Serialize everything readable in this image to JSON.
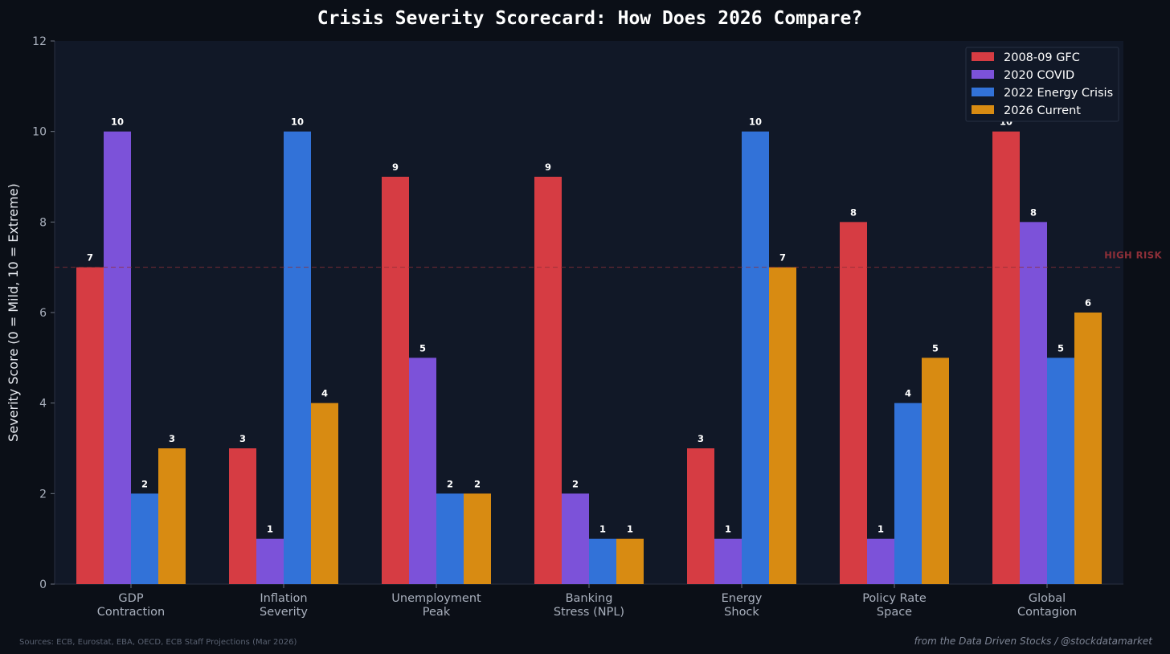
{
  "chart_data": {
    "type": "bar",
    "title": "Crisis Severity Scorecard: How Does 2026 Compare?",
    "ylabel": "Severity Score (0 = Mild, 10 = Extreme)",
    "xlabel": "",
    "ylim": [
      0,
      12
    ],
    "yticks": [
      "0",
      "2",
      "4",
      "6",
      "8",
      "10",
      "12"
    ],
    "categories": [
      [
        "GDP",
        "Contraction"
      ],
      [
        "Inflation",
        "Severity"
      ],
      [
        "Unemployment",
        "Peak"
      ],
      [
        "Banking",
        "Stress (NPL)"
      ],
      [
        "Energy",
        "Shock"
      ],
      [
        "Policy Rate",
        "Space"
      ],
      [
        "Global",
        "Contagion"
      ]
    ],
    "series": [
      {
        "name": "2008-09 GFC",
        "color": "#d63c43",
        "values": [
          7,
          3,
          9,
          9,
          3,
          8,
          10
        ]
      },
      {
        "name": "2020 COVID",
        "color": "#7c52d9",
        "values": [
          10,
          1,
          5,
          2,
          1,
          1,
          8
        ]
      },
      {
        "name": "2022 Energy Crisis",
        "color": "#3272d8",
        "values": [
          2,
          10,
          2,
          1,
          10,
          4,
          5
        ]
      },
      {
        "name": "2026 Current",
        "color": "#d88b12",
        "values": [
          3,
          4,
          2,
          1,
          7,
          5,
          6
        ]
      }
    ],
    "threshold": {
      "value": 7,
      "label": "HIGH RISK",
      "color": "#8e2f38"
    },
    "legend_position": "top-right",
    "grid": false,
    "background": "#111827"
  },
  "footer": {
    "sources": "Sources: ECB, Eurostat, EBA, OECD, ECB Staff Projections (Mar 2026)",
    "credit": "from the Data Driven Stocks / @stockdatamarket"
  }
}
